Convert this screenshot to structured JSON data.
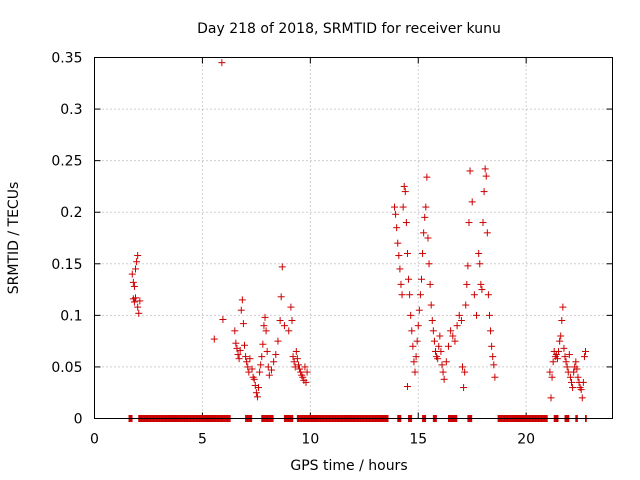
{
  "chart_data": {
    "type": "scatter",
    "title": "Day 218 of 2018, SRMTID for receiver kunu",
    "xlabel": "GPS time / hours",
    "ylabel": "SRMTID / TECUs",
    "xlim": [
      0,
      24
    ],
    "ylim": [
      0,
      0.35
    ],
    "xticks": [
      0,
      5,
      10,
      15,
      20
    ],
    "yticks": [
      0,
      0.05,
      0.1,
      0.15,
      0.2,
      0.25,
      0.3,
      0.35
    ],
    "xtick_labels": [
      "0",
      "5",
      "10",
      "15",
      "20"
    ],
    "ytick_labels": [
      "0",
      "0.05",
      "0.1",
      "0.15",
      "0.2",
      "0.25",
      "0.3",
      "0.35"
    ],
    "grid": true,
    "marker": "+",
    "color": "#cc0000",
    "series": [
      {
        "name": "SRMTID",
        "points": [
          [
            1.75,
            0.14
          ],
          [
            1.8,
            0.132
          ],
          [
            1.85,
            0.128
          ],
          [
            1.9,
            0.145
          ],
          [
            1.95,
            0.152
          ],
          [
            2.0,
            0.158
          ],
          [
            1.8,
            0.116
          ],
          [
            1.85,
            0.113
          ],
          [
            1.9,
            0.117
          ],
          [
            2.0,
            0.108
          ],
          [
            2.05,
            0.102
          ],
          [
            2.1,
            0.114
          ],
          [
            5.55,
            0.077
          ],
          [
            5.9,
            0.345
          ],
          [
            5.95,
            0.096
          ],
          [
            6.5,
            0.085
          ],
          [
            6.55,
            0.073
          ],
          [
            6.6,
            0.068
          ],
          [
            6.65,
            0.062
          ],
          [
            6.7,
            0.058
          ],
          [
            6.75,
            0.066
          ],
          [
            6.8,
            0.105
          ],
          [
            6.85,
            0.115
          ],
          [
            6.9,
            0.092
          ],
          [
            6.95,
            0.071
          ],
          [
            7.0,
            0.06
          ],
          [
            7.05,
            0.055
          ],
          [
            7.1,
            0.05
          ],
          [
            7.15,
            0.045
          ],
          [
            7.2,
            0.058
          ],
          [
            7.3,
            0.048
          ],
          [
            7.35,
            0.04
          ],
          [
            7.4,
            0.038
          ],
          [
            7.45,
            0.032
          ],
          [
            7.5,
            0.025
          ],
          [
            7.55,
            0.021
          ],
          [
            7.6,
            0.03
          ],
          [
            7.65,
            0.045
          ],
          [
            7.7,
            0.052
          ],
          [
            7.75,
            0.06
          ],
          [
            7.8,
            0.072
          ],
          [
            7.85,
            0.09
          ],
          [
            7.9,
            0.098
          ],
          [
            7.95,
            0.085
          ],
          [
            8.0,
            0.065
          ],
          [
            8.05,
            0.05
          ],
          [
            8.1,
            0.042
          ],
          [
            8.2,
            0.047
          ],
          [
            8.3,
            0.055
          ],
          [
            8.4,
            0.062
          ],
          [
            8.5,
            0.075
          ],
          [
            8.6,
            0.095
          ],
          [
            8.65,
            0.118
          ],
          [
            8.7,
            0.147
          ],
          [
            8.8,
            0.09
          ],
          [
            9.0,
            0.085
          ],
          [
            9.1,
            0.108
          ],
          [
            9.15,
            0.095
          ],
          [
            9.2,
            0.06
          ],
          [
            9.25,
            0.055
          ],
          [
            9.3,
            0.05
          ],
          [
            9.35,
            0.065
          ],
          [
            9.4,
            0.058
          ],
          [
            9.45,
            0.052
          ],
          [
            9.5,
            0.048
          ],
          [
            9.55,
            0.045
          ],
          [
            9.6,
            0.042
          ],
          [
            9.65,
            0.04
          ],
          [
            9.7,
            0.037
          ],
          [
            9.75,
            0.05
          ],
          [
            9.8,
            0.035
          ],
          [
            9.85,
            0.045
          ],
          [
            13.9,
            0.205
          ],
          [
            13.95,
            0.198
          ],
          [
            14.0,
            0.185
          ],
          [
            14.05,
            0.17
          ],
          [
            14.1,
            0.158
          ],
          [
            14.15,
            0.145
          ],
          [
            14.2,
            0.13
          ],
          [
            14.25,
            0.12
          ],
          [
            14.3,
            0.205
          ],
          [
            14.35,
            0.225
          ],
          [
            14.4,
            0.22
          ],
          [
            14.45,
            0.19
          ],
          [
            14.5,
            0.16
          ],
          [
            14.55,
            0.135
          ],
          [
            14.6,
            0.12
          ],
          [
            14.65,
            0.1
          ],
          [
            14.7,
            0.085
          ],
          [
            14.75,
            0.07
          ],
          [
            14.8,
            0.055
          ],
          [
            14.5,
            0.031
          ],
          [
            14.85,
            0.045
          ],
          [
            14.9,
            0.06
          ],
          [
            14.95,
            0.075
          ],
          [
            15.0,
            0.09
          ],
          [
            15.05,
            0.105
          ],
          [
            15.1,
            0.12
          ],
          [
            15.15,
            0.135
          ],
          [
            15.2,
            0.16
          ],
          [
            15.25,
            0.18
          ],
          [
            15.3,
            0.195
          ],
          [
            15.35,
            0.205
          ],
          [
            15.4,
            0.234
          ],
          [
            15.45,
            0.175
          ],
          [
            15.5,
            0.15
          ],
          [
            15.55,
            0.13
          ],
          [
            15.6,
            0.11
          ],
          [
            15.65,
            0.095
          ],
          [
            15.7,
            0.085
          ],
          [
            15.75,
            0.075
          ],
          [
            15.8,
            0.065
          ],
          [
            15.85,
            0.06
          ],
          [
            15.9,
            0.058
          ],
          [
            15.95,
            0.07
          ],
          [
            16.0,
            0.08
          ],
          [
            16.05,
            0.065
          ],
          [
            16.1,
            0.052
          ],
          [
            16.15,
            0.045
          ],
          [
            16.2,
            0.038
          ],
          [
            16.3,
            0.055
          ],
          [
            16.4,
            0.07
          ],
          [
            16.5,
            0.085
          ],
          [
            16.6,
            0.08
          ],
          [
            16.7,
            0.075
          ],
          [
            16.8,
            0.09
          ],
          [
            16.9,
            0.1
          ],
          [
            17.0,
            0.095
          ],
          [
            17.05,
            0.05
          ],
          [
            17.1,
            0.03
          ],
          [
            17.15,
            0.045
          ],
          [
            17.2,
            0.11
          ],
          [
            17.25,
            0.13
          ],
          [
            17.3,
            0.148
          ],
          [
            17.35,
            0.19
          ],
          [
            17.4,
            0.24
          ],
          [
            17.5,
            0.21
          ],
          [
            17.6,
            0.12
          ],
          [
            17.7,
            0.1
          ],
          [
            17.8,
            0.16
          ],
          [
            17.85,
            0.15
          ],
          [
            17.9,
            0.13
          ],
          [
            17.95,
            0.125
          ],
          [
            18.0,
            0.19
          ],
          [
            18.05,
            0.22
          ],
          [
            18.1,
            0.242
          ],
          [
            18.15,
            0.235
          ],
          [
            18.2,
            0.18
          ],
          [
            18.25,
            0.12
          ],
          [
            18.3,
            0.1
          ],
          [
            18.35,
            0.085
          ],
          [
            18.4,
            0.07
          ],
          [
            18.45,
            0.06
          ],
          [
            18.5,
            0.052
          ],
          [
            18.55,
            0.04
          ],
          [
            21.1,
            0.045
          ],
          [
            21.15,
            0.02
          ],
          [
            21.2,
            0.04
          ],
          [
            21.25,
            0.055
          ],
          [
            21.3,
            0.065
          ],
          [
            21.35,
            0.06
          ],
          [
            21.4,
            0.062
          ],
          [
            21.45,
            0.058
          ],
          [
            21.5,
            0.065
          ],
          [
            21.55,
            0.075
          ],
          [
            21.6,
            0.08
          ],
          [
            21.65,
            0.095
          ],
          [
            21.7,
            0.108
          ],
          [
            21.75,
            0.068
          ],
          [
            21.8,
            0.06
          ],
          [
            21.85,
            0.055
          ],
          [
            21.9,
            0.05
          ],
          [
            21.95,
            0.045
          ],
          [
            22.0,
            0.062
          ],
          [
            22.05,
            0.04
          ],
          [
            22.1,
            0.035
          ],
          [
            22.15,
            0.03
          ],
          [
            22.2,
            0.045
          ],
          [
            22.25,
            0.05
          ],
          [
            22.3,
            0.055
          ],
          [
            22.35,
            0.048
          ],
          [
            22.4,
            0.04
          ],
          [
            22.45,
            0.035
          ],
          [
            22.5,
            0.03
          ],
          [
            22.55,
            0.028
          ],
          [
            22.6,
            0.02
          ],
          [
            22.65,
            0.035
          ],
          [
            22.7,
            0.06
          ],
          [
            22.75,
            0.065
          ]
        ],
        "zero_ranges": [
          [
            1.6,
            1.75
          ],
          [
            2.05,
            6.3
          ],
          [
            7.0,
            7.3
          ],
          [
            7.75,
            8.3
          ],
          [
            8.8,
            9.2
          ],
          [
            9.4,
            13.6
          ],
          [
            14.05,
            14.2
          ],
          [
            14.55,
            14.7
          ],
          [
            15.2,
            15.35
          ],
          [
            15.7,
            15.85
          ],
          [
            16.4,
            16.8
          ],
          [
            17.3,
            17.5
          ],
          [
            18.7,
            21.0
          ],
          [
            21.3,
            21.5
          ],
          [
            21.8,
            22.0
          ],
          [
            22.3,
            22.4
          ],
          [
            22.75,
            22.8
          ]
        ]
      }
    ]
  }
}
